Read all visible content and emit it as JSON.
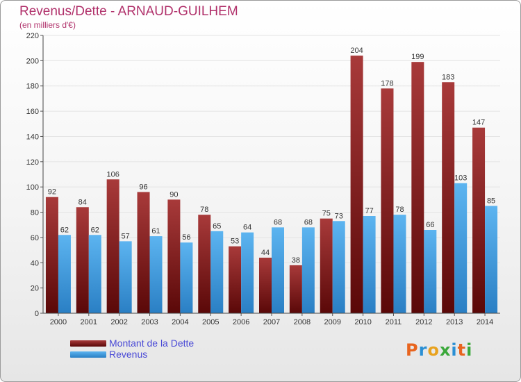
{
  "title": "Revenus/Dette - ARNAUD-GUILHEM",
  "subtitle": "(en milliers d'€)",
  "logo": {
    "text": "Proxiti",
    "letters": [
      {
        "ch": "P",
        "color": "#e8641e"
      },
      {
        "ch": "r",
        "color": "#2a8fd4"
      },
      {
        "ch": "o",
        "color": "#e8a21e"
      },
      {
        "ch": "x",
        "color": "#3aa83a"
      },
      {
        "ch": "i",
        "color": "#2a8fd4"
      },
      {
        "ch": "t",
        "color": "#e8641e"
      },
      {
        "ch": "i",
        "color": "#3aa83a"
      }
    ]
  },
  "chart_data": {
    "type": "bar",
    "categories": [
      "2000",
      "2001",
      "2002",
      "2003",
      "2004",
      "2005",
      "2006",
      "2007",
      "2008",
      "2009",
      "2010",
      "2011",
      "2012",
      "2013",
      "2014"
    ],
    "series": [
      {
        "name": "Montant de la Dette",
        "color": "#8a1c1c",
        "values": [
          92,
          84,
          106,
          96,
          90,
          78,
          53,
          44,
          38,
          75,
          204,
          178,
          199,
          183,
          147
        ]
      },
      {
        "name": "Revenus",
        "color": "#3a9ee4",
        "values": [
          62,
          62,
          57,
          61,
          56,
          65,
          64,
          68,
          68,
          73,
          77,
          78,
          66,
          103,
          85
        ]
      }
    ],
    "ylim": [
      0,
      220
    ],
    "yticks": [
      0,
      20,
      40,
      60,
      80,
      100,
      120,
      140,
      160,
      180,
      200,
      220
    ],
    "grid": true,
    "legend": "bottom-left"
  }
}
